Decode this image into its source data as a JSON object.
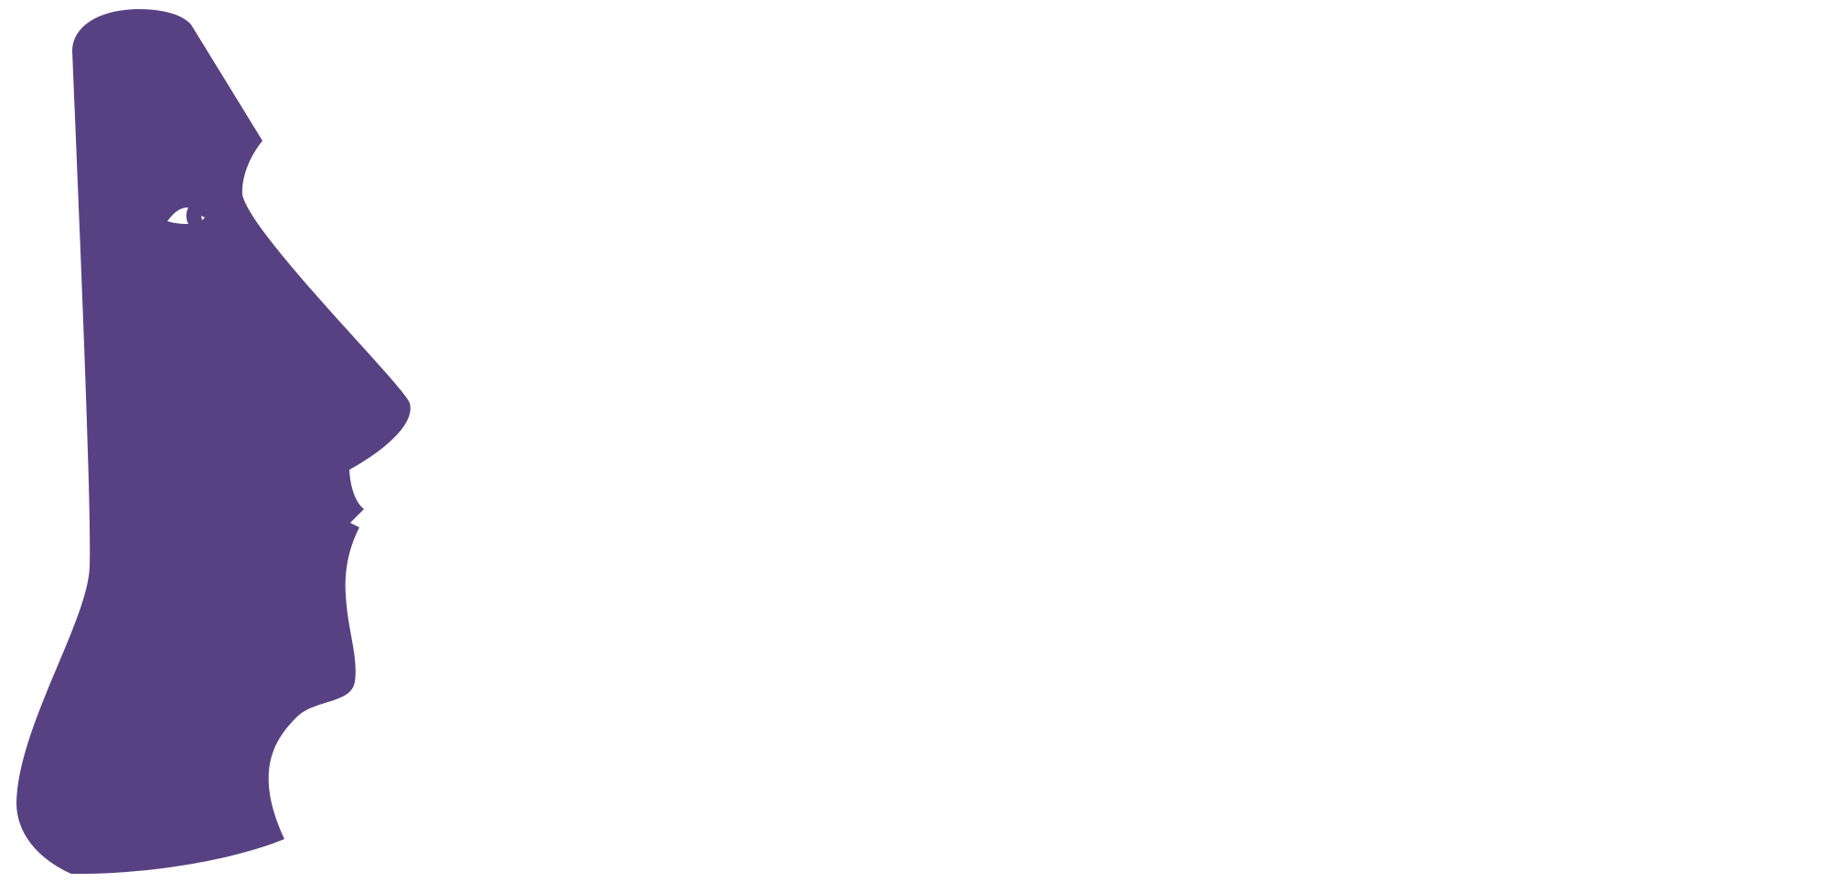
{
  "logo": {
    "icon": "moai-head-profile-icon",
    "color": "#574183",
    "eye_color": "#ffffff"
  },
  "background": {
    "color": "#ffffff"
  }
}
